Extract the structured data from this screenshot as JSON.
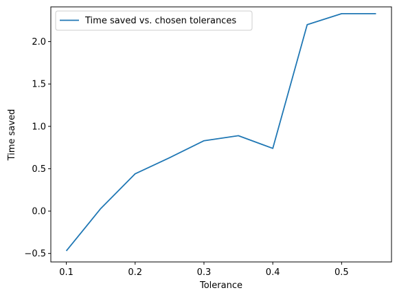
{
  "chart_data": {
    "type": "line",
    "title": "",
    "xlabel": "Tolerance",
    "ylabel": "Time saved",
    "xlim": [
      0.0775,
      0.5725
    ],
    "ylim": [
      -0.6,
      2.41
    ],
    "xticks": [
      0.1,
      0.2,
      0.3,
      0.4,
      0.5
    ],
    "xtick_labels": [
      "0.1",
      "0.2",
      "0.3",
      "0.4",
      "0.5"
    ],
    "yticks": [
      -0.5,
      0.0,
      0.5,
      1.0,
      1.5,
      2.0
    ],
    "ytick_labels": [
      "−0.5",
      "0.0",
      "0.5",
      "1.0",
      "1.5",
      "2.0"
    ],
    "grid": false,
    "legend_position": "top-left",
    "series": [
      {
        "name": "Time saved vs. chosen tolerances",
        "color": "#1f77b4",
        "x": [
          0.1,
          0.15,
          0.2,
          0.25,
          0.3,
          0.35,
          0.4,
          0.45,
          0.5,
          0.55
        ],
        "y": [
          -0.47,
          0.03,
          0.44,
          0.63,
          0.83,
          0.89,
          0.74,
          2.2,
          2.33,
          2.33
        ]
      }
    ]
  }
}
